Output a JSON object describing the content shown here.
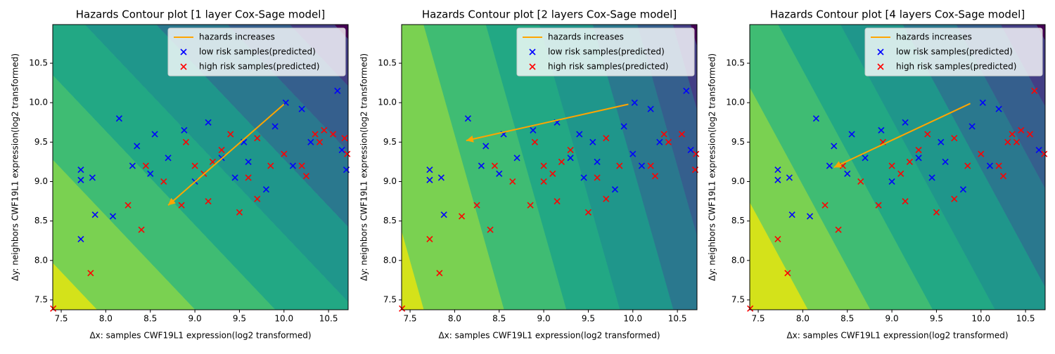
{
  "chart_data": [
    {
      "type": "scatter",
      "title": "Hazards Contour plot [1 layer Cox-Sage model]",
      "xlabel": "Δx: samples CWF19L1 expression(log2 transformed)",
      "ylabel": "Δy: neighbors CWF19L1 expression(log2 transformed)",
      "xlim": [
        7.405,
        10.72
      ],
      "ylim": [
        7.375,
        10.99
      ],
      "xticks": [
        7.5,
        {
          "value": 8,
          "label": "8.0"
        },
        8.5,
        {
          "value": 9,
          "label": "9.0"
        },
        9.5,
        {
          "value": 10,
          "label": "10.0"
        },
        10.5
      ],
      "yticks": [
        7.5,
        {
          "value": 8,
          "label": "8.0"
        },
        8.5,
        {
          "value": 9,
          "label": "9.0"
        },
        9.5,
        {
          "value": 10,
          "label": "10.0"
        },
        10.5
      ],
      "contour": {
        "direction": [
          1,
          0.84
        ],
        "levels": [
          14.1,
          15.2,
          16.1,
          17.0,
          17.8,
          18.6,
          19.3,
          19.8
        ],
        "colors": [
          "#d4e21a",
          "#7ad151",
          "#3fbc73",
          "#22a884",
          "#1f968b",
          "#2a788e",
          "#355f8d",
          "#433e85",
          "#440154"
        ]
      },
      "arrow": {
        "name": "hazards increases",
        "color": "#ffa500",
        "from": [
          10.0,
          9.98
        ],
        "to": [
          8.7,
          8.7
        ]
      },
      "legend": "upper right",
      "series": [
        {
          "name": "low risk samples(predicted)",
          "color": "#0000ff",
          "x": [
            7.72,
            7.72,
            7.72,
            7.88,
            8.08,
            8.15,
            7.85,
            8.35,
            8.55,
            8.88,
            9.15,
            9.55,
            10.02,
            10.2,
            10.6,
            10.65,
            10.7,
            9.8,
            9.3,
            9.0,
            8.5,
            8.3,
            9.6,
            10.3,
            9.9,
            8.7,
            9.45,
            10.1
          ],
          "values": [
            9.15,
            9.02,
            8.27,
            8.58,
            8.56,
            9.8,
            9.05,
            9.45,
            9.6,
            9.65,
            9.75,
            9.5,
            10.0,
            9.92,
            10.15,
            9.4,
            9.15,
            8.9,
            9.3,
            9.0,
            9.1,
            9.2,
            9.25,
            9.5,
            9.7,
            9.3,
            9.05,
            9.2
          ]
        },
        {
          "name": "high risk samples(predicted)",
          "color": "#ff0000",
          "x": [
            7.41,
            7.83,
            8.25,
            8.4,
            9.5,
            9.7,
            9.15,
            8.85,
            9.0,
            9.2,
            9.1,
            9.3,
            9.4,
            9.7,
            10.0,
            10.35,
            10.4,
            10.2,
            10.55,
            10.68,
            10.71,
            8.65,
            8.9,
            9.6,
            8.45,
            10.25,
            9.85,
            10.45
          ],
          "values": [
            7.39,
            7.84,
            8.7,
            8.39,
            8.61,
            8.78,
            8.75,
            8.7,
            9.2,
            9.25,
            9.1,
            9.4,
            9.6,
            9.55,
            9.35,
            9.6,
            9.5,
            9.2,
            9.6,
            9.55,
            9.35,
            9.0,
            9.5,
            9.05,
            9.2,
            9.07,
            9.2,
            9.65
          ]
        }
      ]
    },
    {
      "type": "scatter",
      "title": "Hazards Contour plot [2 layers Cox-Sage model]",
      "xlabel": "Δx: samples CWF19L1 expression(log2 transformed)",
      "ylabel": "Δy: neighbors CWF19L1 expression(log2 transformed)",
      "xlim": [
        7.405,
        10.72
      ],
      "ylim": [
        7.375,
        10.99
      ],
      "xticks": [
        7.5,
        {
          "value": 8,
          "label": "8.0"
        },
        8.5,
        {
          "value": 9,
          "label": "9.0"
        },
        9.5,
        {
          "value": 10,
          "label": "10.0"
        },
        10.5
      ],
      "yticks": [
        7.5,
        {
          "value": 8,
          "label": "8.0"
        },
        8.5,
        {
          "value": 9,
          "label": "9.0"
        },
        9.5,
        {
          "value": 10,
          "label": "10.0"
        },
        10.5
      ],
      "contour": {
        "direction": [
          1,
          0.25
        ],
        "levels": [
          9.5,
          10.4,
          11.1,
          11.7,
          12.3,
          12.8,
          13.2,
          13.4
        ],
        "colors": [
          "#d4e21a",
          "#7ad151",
          "#3fbc73",
          "#22a884",
          "#1f968b",
          "#2a788e",
          "#355f8d",
          "#433e85",
          "#440154"
        ]
      },
      "arrow": {
        "name": "hazards increases",
        "color": "#ffa500",
        "from": [
          9.95,
          9.98
        ],
        "to": [
          8.13,
          9.52
        ]
      },
      "legend": "upper right",
      "series": [
        {
          "name": "low risk samples(predicted)",
          "color": "#0000ff",
          "x": [
            7.72,
            7.72,
            7.88,
            8.15,
            7.85,
            8.35,
            8.55,
            8.88,
            9.15,
            9.55,
            10.02,
            10.2,
            10.6,
            10.65,
            9.8,
            9.3,
            8.5,
            8.3,
            9.6,
            10.3,
            9.9,
            8.7,
            9.45,
            10.1,
            10.0,
            9.4
          ],
          "values": [
            9.15,
            9.02,
            8.58,
            9.8,
            9.05,
            9.45,
            9.6,
            9.65,
            9.75,
            9.5,
            10.0,
            9.92,
            10.15,
            9.4,
            8.9,
            9.3,
            9.1,
            9.2,
            9.25,
            9.5,
            9.7,
            9.3,
            9.05,
            9.2,
            9.35,
            9.6
          ]
        },
        {
          "name": "high risk samples(predicted)",
          "color": "#ff0000",
          "x": [
            7.41,
            7.72,
            7.83,
            8.08,
            8.25,
            8.4,
            9.5,
            9.7,
            9.15,
            8.85,
            9.0,
            9.2,
            9.1,
            9.3,
            9.7,
            10.35,
            10.4,
            10.2,
            10.55,
            10.71,
            8.65,
            8.9,
            9.6,
            8.45,
            10.25,
            9.85,
            9.0,
            10.7
          ],
          "values": [
            7.39,
            8.27,
            7.84,
            8.56,
            8.7,
            8.39,
            8.61,
            8.78,
            8.75,
            8.7,
            9.2,
            9.25,
            9.1,
            9.4,
            9.55,
            9.6,
            9.5,
            9.2,
            9.6,
            9.35,
            9.0,
            9.5,
            9.05,
            9.2,
            9.07,
            9.2,
            9.0,
            9.15
          ]
        }
      ]
    },
    {
      "type": "scatter",
      "title": "Hazards Contour plot [4 layers Cox-Sage model]",
      "xlabel": "Δx: samples CWF19L1 expression(log2 transformed)",
      "ylabel": "Δy: neighbors CWF19L1 expression(log2 transformed)",
      "xlim": [
        7.405,
        10.72
      ],
      "ylim": [
        7.375,
        10.99
      ],
      "xticks": [
        7.5,
        {
          "value": 8,
          "label": "8.0"
        },
        8.5,
        {
          "value": 9,
          "label": "9.0"
        },
        9.5,
        {
          "value": 10,
          "label": "10.0"
        },
        10.5
      ],
      "yticks": [
        7.5,
        {
          "value": 8,
          "label": "8.0"
        },
        8.5,
        {
          "value": 9,
          "label": "9.0"
        },
        9.5,
        {
          "value": 10,
          "label": "10.0"
        },
        10.5
      ],
      "contour": {
        "direction": [
          1,
          0.48
        ],
        "levels": [
          11.6,
          12.3,
          13.0,
          13.7,
          14.4,
          15.0,
          15.5,
          15.9
        ],
        "colors": [
          "#d4e21a",
          "#7ad151",
          "#3fbc73",
          "#22a884",
          "#1f968b",
          "#2a788e",
          "#355f8d",
          "#433e85",
          "#440154"
        ]
      },
      "arrow": {
        "name": "hazards increases",
        "color": "#ffa500",
        "from": [
          9.88,
          9.99
        ],
        "to": [
          8.35,
          9.18
        ]
      },
      "legend": "upper right",
      "series": [
        {
          "name": "low risk samples(predicted)",
          "color": "#0000ff",
          "x": [
            7.72,
            7.72,
            7.88,
            8.08,
            8.15,
            7.85,
            8.35,
            8.55,
            8.88,
            9.15,
            9.55,
            10.02,
            10.2,
            10.65,
            9.8,
            9.3,
            9.0,
            8.5,
            8.3,
            9.6,
            9.9,
            8.7,
            9.45,
            10.1
          ],
          "values": [
            9.15,
            9.02,
            8.58,
            8.56,
            9.8,
            9.05,
            9.45,
            9.6,
            9.65,
            9.75,
            9.5,
            10.0,
            9.92,
            9.4,
            8.9,
            9.3,
            9.0,
            9.1,
            9.2,
            9.25,
            9.7,
            9.3,
            9.05,
            9.2
          ]
        },
        {
          "name": "high risk samples(predicted)",
          "color": "#ff0000",
          "x": [
            7.41,
            7.72,
            7.83,
            8.25,
            8.4,
            9.5,
            9.7,
            9.15,
            8.85,
            9.0,
            9.2,
            9.1,
            9.3,
            9.4,
            9.7,
            10.0,
            10.35,
            10.4,
            10.2,
            10.55,
            10.6,
            10.71,
            8.65,
            8.9,
            8.45,
            10.25,
            9.85,
            10.45,
            10.3
          ],
          "values": [
            7.39,
            8.27,
            7.84,
            8.7,
            8.39,
            8.61,
            8.78,
            8.75,
            8.7,
            9.2,
            9.25,
            9.1,
            9.4,
            9.6,
            9.55,
            9.35,
            9.6,
            9.5,
            9.2,
            9.6,
            10.15,
            9.35,
            9.0,
            9.5,
            9.2,
            9.07,
            9.2,
            9.65,
            9.5
          ]
        }
      ]
    }
  ]
}
